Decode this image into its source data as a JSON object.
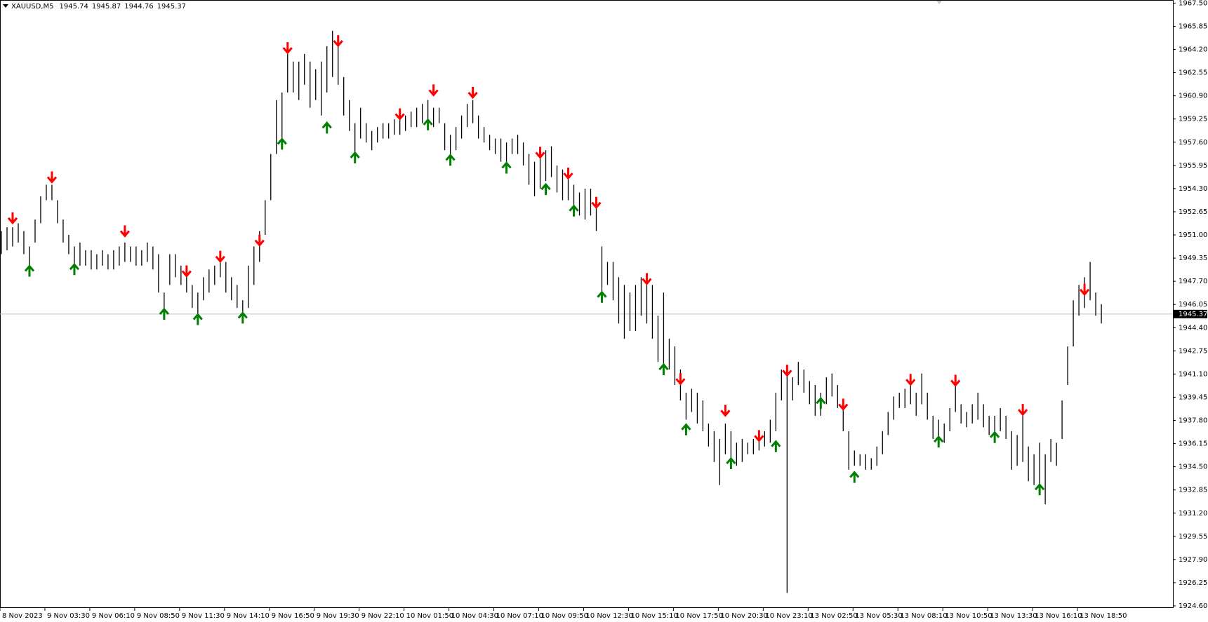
{
  "chart_data": {
    "type": "ohlc",
    "symbol": "XAUUSD,M5",
    "header_values": [
      1945.74,
      1945.87,
      1944.76,
      1945.37
    ],
    "bar_color": "#000000",
    "high": [
      1951.28,
      1951.55,
      1951.55,
      1951.83,
      1951.28,
      1950.18,
      1952.1,
      1953.75,
      1954.57,
      1954.57,
      1953.47,
      1952.1,
      1951.0,
      1950.18,
      1950.46,
      1949.91,
      1949.91,
      1949.63,
      1949.91,
      1949.63,
      1949.91,
      1950.18,
      1950.46,
      1950.18,
      1950.18,
      1949.91,
      1950.46,
      1950.18,
      1949.63,
      1946.9,
      1949.63,
      1949.63,
      1948.81,
      1948.54,
      1947.44,
      1946.9,
      1947.99,
      1948.54,
      1948.81,
      1949.08,
      1949.08,
      1947.99,
      1947.44,
      1946.35,
      1948.81,
      1950.18,
      1951.28,
      1953.47,
      1956.76,
      1960.6,
      1961.14,
      1963.88,
      1963.34,
      1963.34,
      1963.88,
      1963.34,
      1962.79,
      1963.34,
      1964.43,
      1965.53,
      1964.98,
      1962.24,
      1960.6,
      1958.95,
      1960.05,
      1958.95,
      1958.4,
      1958.68,
      1958.95,
      1958.95,
      1959.23,
      1959.5,
      1959.5,
      1959.77,
      1960.05,
      1960.32,
      1960.6,
      1960.05,
      1960.05,
      1958.95,
      1958.13,
      1958.68,
      1959.5,
      1960.32,
      1960.6,
      1959.5,
      1958.68,
      1958.13,
      1957.86,
      1957.86,
      1957.58,
      1957.86,
      1958.13,
      1957.58,
      1956.76,
      1956.21,
      1956.76,
      1957.03,
      1957.31,
      1955.94,
      1955.66,
      1955.39,
      1954.57,
      1954.02,
      1954.29,
      1954.29,
      1953.47,
      1950.18,
      1949.08,
      1949.08,
      1947.99,
      1947.44,
      1946.9,
      1947.44,
      1947.99,
      1947.72,
      1947.44,
      1945.25,
      1946.9,
      1943.61,
      1943.06,
      1941.42,
      1939.77,
      1940.05,
      1939.77,
      1939.22,
      1937.58,
      1937.03,
      1936.48,
      1937.58,
      1937.03,
      1936.21,
      1936.48,
      1936.21,
      1936.48,
      1936.76,
      1937.03,
      1937.85,
      1939.77,
      1941.42,
      1941.42,
      1940.87,
      1941.96,
      1941.42,
      1940.6,
      1940.32,
      1939.77,
      1940.87,
      1941.14,
      1940.32,
      1939.22,
      1937.03,
      1935.66,
      1935.39,
      1935.39,
      1935.11,
      1935.94,
      1937.03,
      1938.4,
      1939.5,
      1939.77,
      1940.05,
      1940.32,
      1939.77,
      1941.14,
      1939.77,
      1938.13,
      1937.85,
      1937.58,
      1938.68,
      1940.32,
      1938.95,
      1938.4,
      1938.95,
      1939.77,
      1938.95,
      1938.13,
      1938.13,
      1938.68,
      1938.13,
      1937.03,
      1936.76,
      1938.68,
      1935.94,
      1935.39,
      1936.21,
      1935.39,
      1936.48,
      1936.21,
      1939.22,
      1943.06,
      1946.35,
      1947.44,
      1947.99,
      1949.08,
      1946.9,
      1946.08
    ],
    "low": [
      1949.63,
      1949.91,
      1950.18,
      1950.46,
      1949.63,
      1948.81,
      1950.46,
      1951.83,
      1953.47,
      1953.47,
      1951.83,
      1950.46,
      1949.63,
      1948.54,
      1948.81,
      1948.81,
      1948.54,
      1948.54,
      1948.81,
      1948.54,
      1948.54,
      1948.81,
      1949.08,
      1949.08,
      1948.81,
      1948.81,
      1949.08,
      1948.54,
      1946.9,
      1944.98,
      1947.44,
      1947.99,
      1947.44,
      1946.9,
      1945.8,
      1945.25,
      1946.35,
      1946.9,
      1947.44,
      1947.99,
      1946.9,
      1946.35,
      1945.8,
      1945.25,
      1945.8,
      1947.44,
      1949.08,
      1951.0,
      1953.47,
      1956.76,
      1957.86,
      1961.14,
      1961.14,
      1960.6,
      1961.69,
      1960.05,
      1960.6,
      1959.5,
      1961.14,
      1962.24,
      1961.69,
      1959.5,
      1958.4,
      1956.21,
      1957.86,
      1957.58,
      1957.03,
      1957.58,
      1957.86,
      1957.86,
      1958.13,
      1958.13,
      1958.4,
      1958.68,
      1958.68,
      1958.95,
      1958.95,
      1958.68,
      1958.95,
      1957.03,
      1956.21,
      1957.03,
      1957.86,
      1958.68,
      1958.95,
      1957.86,
      1957.58,
      1957.03,
      1956.76,
      1956.21,
      1955.94,
      1956.76,
      1956.76,
      1955.94,
      1954.57,
      1953.75,
      1954.29,
      1954.84,
      1955.12,
      1954.02,
      1953.47,
      1953.47,
      1952.92,
      1952.38,
      1952.1,
      1952.38,
      1951.28,
      1946.9,
      1947.44,
      1946.35,
      1944.7,
      1943.61,
      1944.16,
      1944.16,
      1945.25,
      1944.7,
      1943.61,
      1941.96,
      1941.42,
      1941.42,
      1940.32,
      1939.22,
      1937.85,
      1938.4,
      1937.58,
      1937.03,
      1935.94,
      1934.84,
      1933.2,
      1935.39,
      1935.11,
      1934.57,
      1934.84,
      1935.39,
      1935.39,
      1935.66,
      1935.94,
      1936.21,
      1937.03,
      1939.22,
      1925.52,
      1939.22,
      1940.32,
      1939.77,
      1938.95,
      1938.13,
      1938.13,
      1938.95,
      1939.5,
      1938.68,
      1937.03,
      1934.29,
      1934.57,
      1934.57,
      1934.29,
      1934.29,
      1934.57,
      1935.39,
      1936.76,
      1937.85,
      1938.68,
      1938.68,
      1938.95,
      1938.13,
      1938.95,
      1937.85,
      1936.48,
      1936.21,
      1936.21,
      1937.03,
      1938.4,
      1937.58,
      1937.31,
      1937.58,
      1937.85,
      1937.31,
      1936.76,
      1936.48,
      1937.03,
      1936.48,
      1934.29,
      1934.57,
      1934.84,
      1933.47,
      1933.2,
      1933.2,
      1931.83,
      1934.84,
      1934.57,
      1936.48,
      1940.32,
      1943.06,
      1945.25,
      1945.8,
      1946.35,
      1945.25,
      1944.7
    ],
    "sell_signals": {
      "color": "#ff0000",
      "x": [
        2,
        9,
        22,
        33,
        39,
        46,
        51,
        60,
        71,
        77,
        84,
        96,
        101,
        106,
        115,
        121,
        129,
        135,
        140,
        150,
        162,
        170,
        182,
        193
      ],
      "y": [
        1952.21,
        1955.12,
        1951.28,
        1948.43,
        1949.47,
        1950.62,
        1964.32,
        1964.82,
        1959.61,
        1961.31,
        1961.14,
        1956.87,
        1955.39,
        1953.31,
        1947.88,
        1940.76,
        1938.51,
        1936.71,
        1941.36,
        1938.95,
        1940.71,
        1940.65,
        1938.57,
        1947.12
      ]
    },
    "buy_signals": {
      "color": "#008000",
      "x": [
        5,
        13,
        29,
        35,
        43,
        50,
        58,
        63,
        76,
        80,
        90,
        97,
        102,
        107,
        118,
        122,
        130,
        138,
        146,
        152,
        167,
        177,
        185
      ],
      "y": [
        1948.43,
        1948.54,
        1945.36,
        1944.98,
        1945.09,
        1957.47,
        1958.62,
        1956.49,
        1958.84,
        1956.32,
        1955.77,
        1954.24,
        1952.71,
        1946.57,
        1941.42,
        1937.14,
        1934.73,
        1935.94,
        1939.01,
        1933.75,
        1936.27,
        1936.59,
        1932.87
      ]
    },
    "last_price": 1945.37,
    "ylim": [
      1924.45,
      1967.72
    ],
    "yticks": [
      {
        "value": 1924.6,
        "label": "1924.60"
      },
      1926.25,
      {
        "value": 1927.9,
        "label": "1927.90"
      },
      1929.55,
      {
        "value": 1931.2,
        "label": "1931.20"
      },
      1932.85,
      {
        "value": 1934.5,
        "label": "1934.50"
      },
      1936.15,
      {
        "value": 1937.8,
        "label": "1937.80"
      },
      1939.45,
      {
        "value": 1941.1,
        "label": "1941.10"
      },
      1942.75,
      {
        "value": 1944.4,
        "label": "1944.40"
      },
      1946.05,
      {
        "value": 1947.7,
        "label": "1947.70"
      },
      1949.35,
      {
        "value": 1951,
        "label": "1951.00"
      },
      1952.65,
      {
        "value": 1954.3,
        "label": "1954.30"
      },
      1955.95,
      {
        "value": 1957.6,
        "label": "1957.60"
      },
      1959.25,
      {
        "value": 1960.9,
        "label": "1960.90"
      },
      1962.55,
      {
        "value": 1964.2,
        "label": "1964.20"
      },
      1965.85,
      {
        "value": 1967.5,
        "label": "1967.50"
      }
    ],
    "xlim": [
      0,
      209
    ],
    "xticks": [
      {
        "value": 0,
        "label": "8 Nov 2023"
      },
      {
        "value": 8,
        "label": "9 Nov 03:30"
      },
      {
        "value": 16,
        "label": "9 Nov 06:10"
      },
      {
        "value": 24,
        "label": "9 Nov 08:50"
      },
      {
        "value": 32,
        "label": "9 Nov 11:30"
      },
      {
        "value": 40,
        "label": "9 Nov 14:10"
      },
      {
        "value": 48,
        "label": "9 Nov 16:50"
      },
      {
        "value": 56,
        "label": "9 Nov 19:30"
      },
      {
        "value": 64,
        "label": "9 Nov 22:10"
      },
      {
        "value": 72,
        "label": "10 Nov 01:50"
      },
      {
        "value": 80,
        "label": "10 Nov 04:30"
      },
      {
        "value": 88,
        "label": "10 Nov 07:10"
      },
      {
        "value": 96,
        "label": "10 Nov 09:50"
      },
      {
        "value": 104,
        "label": "10 Nov 12:30"
      },
      {
        "value": 112,
        "label": "10 Nov 15:10"
      },
      {
        "value": 120,
        "label": "10 Nov 17:50"
      },
      {
        "value": 128,
        "label": "10 Nov 20:30"
      },
      {
        "value": 136,
        "label": "10 Nov 23:10"
      },
      {
        "value": 144,
        "label": "13 Nov 02:50"
      },
      {
        "value": 152,
        "label": "13 Nov 05:30"
      },
      {
        "value": 160,
        "label": "13 Nov 08:10"
      },
      {
        "value": 168,
        "label": "13 Nov 10:50"
      },
      {
        "value": 176,
        "label": "13 Nov 13:30"
      },
      {
        "value": 184,
        "label": "13 Nov 16:10"
      },
      {
        "value": 192,
        "label": "13 Nov 18:50"
      }
    ]
  }
}
